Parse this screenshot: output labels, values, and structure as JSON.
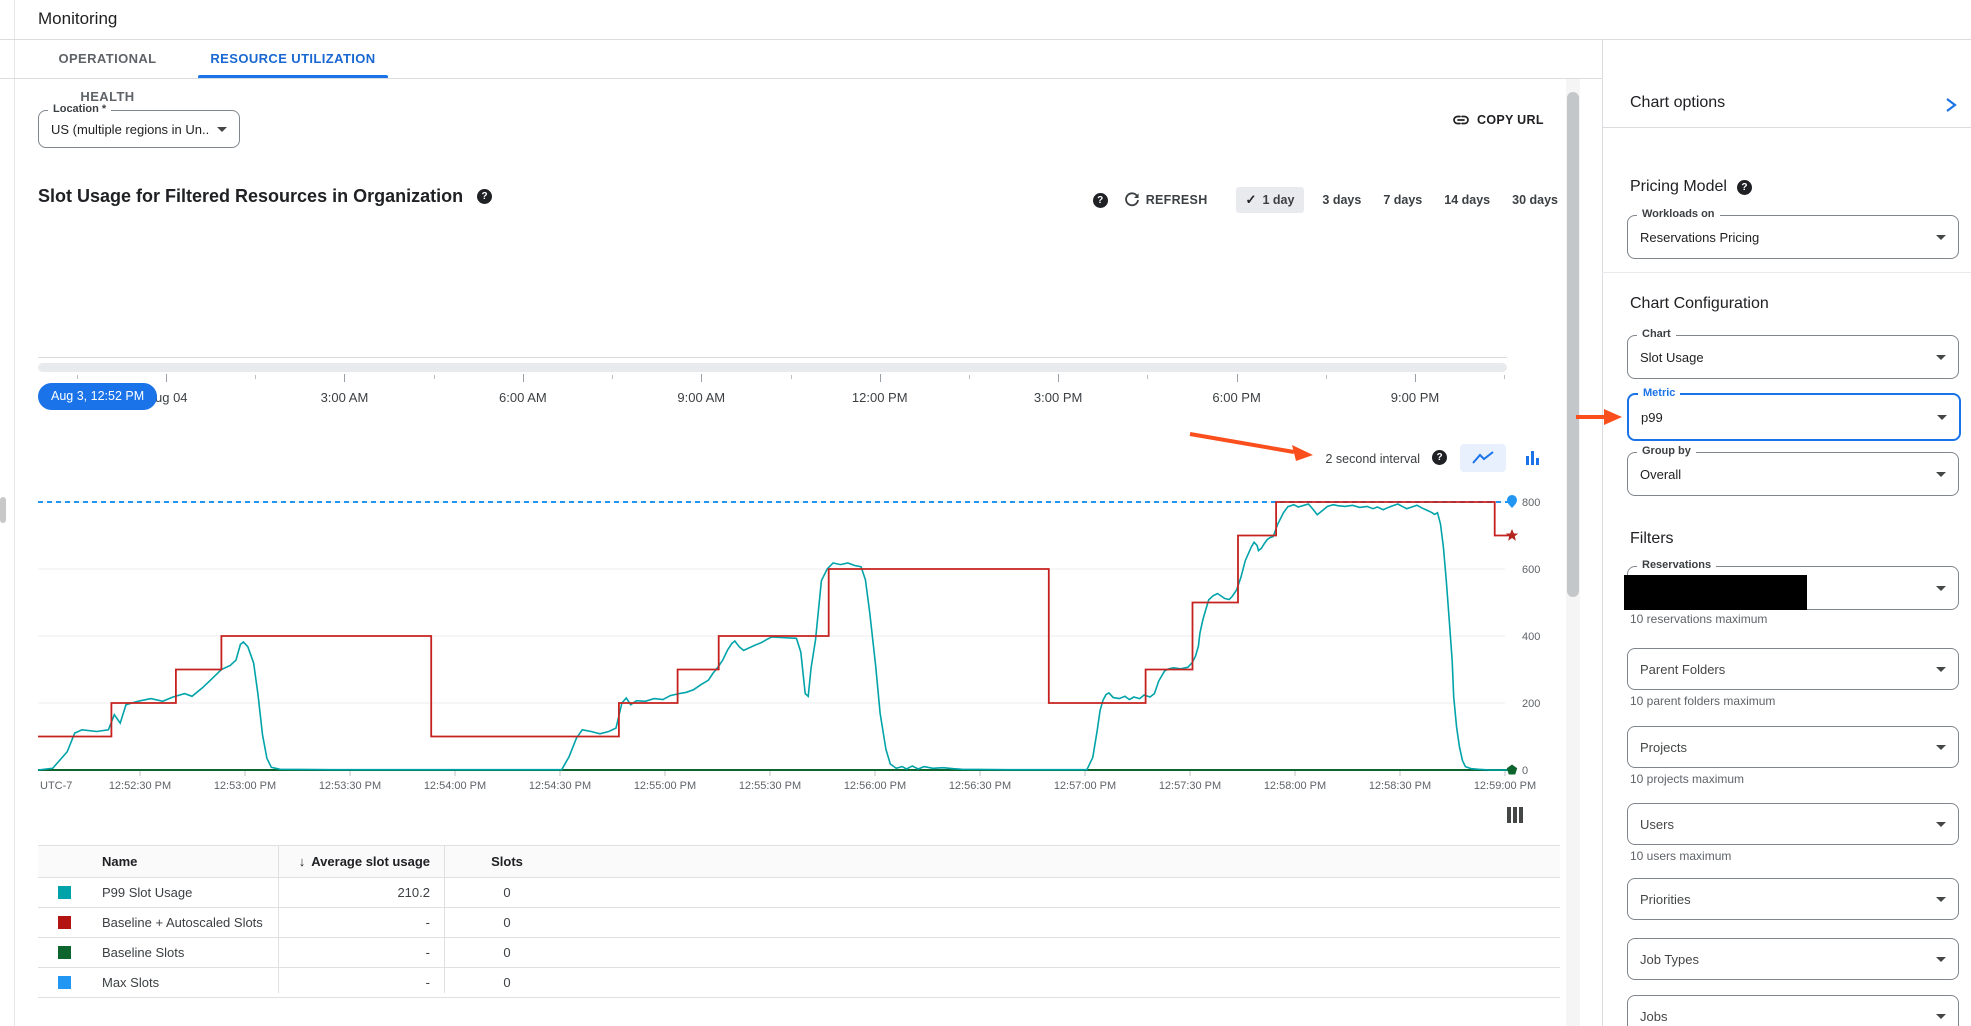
{
  "colors": {
    "accent": "#1a73e8",
    "tab_active": "#1967d2",
    "annotation_arrow": "#fb4e1d",
    "selected_range_bg": "#e8eaed",
    "toggle_active_bg": "#e8f0fe"
  },
  "header": {
    "title": "Monitoring"
  },
  "tabs": [
    {
      "label": "OPERATIONAL HEALTH",
      "active": false
    },
    {
      "label": "RESOURCE UTILIZATION",
      "active": true
    }
  ],
  "location_field": {
    "label": "Location *",
    "value": "US (multiple regions in Un..."
  },
  "copy_url": {
    "label": "COPY URL"
  },
  "chart_header": {
    "title": "Slot Usage for Filtered Resources in Organization",
    "refresh_label": "REFRESH",
    "ranges": [
      "1 day",
      "3 days",
      "7 days",
      "14 days",
      "30 days"
    ],
    "selected_range": "1 day"
  },
  "timeline": {
    "selected_time": "Aug 3, 12:52 PM",
    "clipped_first_label": "ug 04",
    "labels": [
      "Aug 04",
      "3:00 AM",
      "6:00 AM",
      "9:00 AM",
      "12:00 PM",
      "3:00 PM",
      "6:00 PM",
      "9:00 PM"
    ]
  },
  "interval_control": {
    "label": "2 second interval"
  },
  "chart_data": {
    "type": "line",
    "title": "Slot Usage for Filtered Resources in Organization",
    "x_axis_note": "UTC-7",
    "x_tick_labels": [
      "12:52:30 PM",
      "12:53:00 PM",
      "12:53:30 PM",
      "12:54:00 PM",
      "12:54:30 PM",
      "12:55:00 PM",
      "12:55:30 PM",
      "12:56:00 PM",
      "12:56:30 PM",
      "12:57:00 PM",
      "12:57:30 PM",
      "12:58:00 PM",
      "12:58:30 PM",
      "12:59:00 PM"
    ],
    "y_ticks": [
      0,
      200,
      400,
      600,
      800
    ],
    "ylim": [
      0,
      830
    ],
    "grid": true,
    "legend_position": "table-below",
    "series": [
      {
        "name": "Max Slots",
        "color": "#2196f3",
        "style": "dashed",
        "width": 2,
        "marker": "drop",
        "points": [
          [
            0,
            800
          ],
          [
            1,
            800
          ]
        ]
      },
      {
        "name": "Baseline Slots",
        "color": "#0d652d",
        "style": "solid",
        "width": 2,
        "marker": "pentagon",
        "points": [
          [
            0,
            0
          ],
          [
            1,
            0
          ]
        ]
      },
      {
        "name": "P99 Slot Usage",
        "color": "#00a3a9",
        "style": "solid",
        "width": 1.6,
        "marker": "none",
        "points": [
          [
            0,
            0
          ],
          [
            0.01,
            5
          ],
          [
            0.02,
            55
          ],
          [
            0.025,
            110
          ],
          [
            0.03,
            120
          ],
          [
            0.04,
            115
          ],
          [
            0.048,
            120
          ],
          [
            0.052,
            165
          ],
          [
            0.056,
            140
          ],
          [
            0.06,
            195
          ],
          [
            0.068,
            205
          ],
          [
            0.077,
            213
          ],
          [
            0.085,
            205
          ],
          [
            0.092,
            218
          ],
          [
            0.1,
            228
          ],
          [
            0.105,
            220
          ],
          [
            0.112,
            245
          ],
          [
            0.118,
            270
          ],
          [
            0.125,
            300
          ],
          [
            0.131,
            312
          ],
          [
            0.135,
            328
          ],
          [
            0.138,
            375
          ],
          [
            0.14,
            382
          ],
          [
            0.143,
            368
          ],
          [
            0.147,
            320
          ],
          [
            0.15,
            225
          ],
          [
            0.153,
            105
          ],
          [
            0.156,
            35
          ],
          [
            0.159,
            8
          ],
          [
            0.165,
            2
          ],
          [
            0.2,
            1
          ],
          [
            0.28,
            1
          ],
          [
            0.357,
            1
          ],
          [
            0.362,
            40
          ],
          [
            0.367,
            95
          ],
          [
            0.371,
            120
          ],
          [
            0.377,
            115
          ],
          [
            0.383,
            108
          ],
          [
            0.389,
            115
          ],
          [
            0.394,
            125
          ],
          [
            0.398,
            200
          ],
          [
            0.401,
            215
          ],
          [
            0.404,
            195
          ],
          [
            0.408,
            207
          ],
          [
            0.414,
            205
          ],
          [
            0.42,
            213
          ],
          [
            0.426,
            210
          ],
          [
            0.431,
            222
          ],
          [
            0.437,
            228
          ],
          [
            0.442,
            232
          ],
          [
            0.447,
            240
          ],
          [
            0.452,
            255
          ],
          [
            0.457,
            268
          ],
          [
            0.46,
            288
          ],
          [
            0.464,
            310
          ],
          [
            0.467,
            330
          ],
          [
            0.47,
            358
          ],
          [
            0.473,
            378
          ],
          [
            0.475,
            385
          ],
          [
            0.478,
            368
          ],
          [
            0.481,
            357
          ],
          [
            0.485,
            365
          ],
          [
            0.489,
            373
          ],
          [
            0.493,
            380
          ],
          [
            0.497,
            390
          ],
          [
            0.5,
            397
          ],
          [
            0.517,
            393
          ],
          [
            0.52,
            352
          ],
          [
            0.523,
            228
          ],
          [
            0.525,
            220
          ],
          [
            0.527,
            305
          ],
          [
            0.53,
            388
          ],
          [
            0.534,
            565
          ],
          [
            0.538,
            600
          ],
          [
            0.542,
            618
          ],
          [
            0.547,
            613
          ],
          [
            0.552,
            618
          ],
          [
            0.557,
            610
          ],
          [
            0.561,
            607
          ],
          [
            0.564,
            568
          ],
          [
            0.567,
            468
          ],
          [
            0.571,
            310
          ],
          [
            0.574,
            170
          ],
          [
            0.578,
            62
          ],
          [
            0.581,
            18
          ],
          [
            0.585,
            5
          ],
          [
            0.589,
            10
          ],
          [
            0.592,
            3
          ],
          [
            0.596,
            12
          ],
          [
            0.6,
            3
          ],
          [
            0.604,
            10
          ],
          [
            0.61,
            5
          ],
          [
            0.617,
            7
          ],
          [
            0.624,
            4
          ],
          [
            0.63,
            2
          ],
          [
            0.66,
            1
          ],
          [
            0.7,
            1
          ],
          [
            0.715,
            1
          ],
          [
            0.719,
            38
          ],
          [
            0.722,
            118
          ],
          [
            0.724,
            178
          ],
          [
            0.726,
            208
          ],
          [
            0.728,
            225
          ],
          [
            0.73,
            230
          ],
          [
            0.733,
            216
          ],
          [
            0.737,
            213
          ],
          [
            0.741,
            220
          ],
          [
            0.744,
            210
          ],
          [
            0.747,
            218
          ],
          [
            0.751,
            213
          ],
          [
            0.754,
            224
          ],
          [
            0.758,
            218
          ],
          [
            0.761,
            228
          ],
          [
            0.764,
            266
          ],
          [
            0.768,
            296
          ],
          [
            0.771,
            302
          ],
          [
            0.774,
            305
          ],
          [
            0.779,
            302
          ],
          [
            0.784,
            307
          ],
          [
            0.787,
            322
          ],
          [
            0.789,
            340
          ],
          [
            0.791,
            370
          ],
          [
            0.792,
            408
          ],
          [
            0.794,
            448
          ],
          [
            0.796,
            478
          ],
          [
            0.798,
            508
          ],
          [
            0.801,
            520
          ],
          [
            0.804,
            527
          ],
          [
            0.806,
            521
          ],
          [
            0.809,
            512
          ],
          [
            0.812,
            509
          ],
          [
            0.814,
            518
          ],
          [
            0.817,
            537
          ],
          [
            0.82,
            575
          ],
          [
            0.823,
            625
          ],
          [
            0.827,
            665
          ],
          [
            0.829,
            680
          ],
          [
            0.831,
            670
          ],
          [
            0.832,
            655
          ],
          [
            0.834,
            662
          ],
          [
            0.836,
            676
          ],
          [
            0.838,
            688
          ],
          [
            0.84,
            694
          ],
          [
            0.842,
            697
          ],
          [
            0.845,
            733
          ],
          [
            0.849,
            768
          ],
          [
            0.852,
            786
          ],
          [
            0.856,
            792
          ],
          [
            0.859,
            785
          ],
          [
            0.863,
            790
          ],
          [
            0.866,
            794
          ],
          [
            0.869,
            779
          ],
          [
            0.872,
            762
          ],
          [
            0.876,
            776
          ],
          [
            0.879,
            787
          ],
          [
            0.883,
            792
          ],
          [
            0.886,
            789
          ],
          [
            0.891,
            787
          ],
          [
            0.896,
            790
          ],
          [
            0.901,
            784
          ],
          [
            0.906,
            787
          ],
          [
            0.91,
            780
          ],
          [
            0.913,
            785
          ],
          [
            0.917,
            777
          ],
          [
            0.92,
            783
          ],
          [
            0.923,
            788
          ],
          [
            0.927,
            794
          ],
          [
            0.93,
            787
          ],
          [
            0.933,
            780
          ],
          [
            0.937,
            786
          ],
          [
            0.94,
            790
          ],
          [
            0.943,
            783
          ],
          [
            0.947,
            775
          ],
          [
            0.95,
            769
          ],
          [
            0.952,
            763
          ],
          [
            0.954,
            768
          ],
          [
            0.956,
            734
          ],
          [
            0.958,
            665
          ],
          [
            0.96,
            565
          ],
          [
            0.962,
            445
          ],
          [
            0.964,
            325
          ],
          [
            0.965,
            218
          ],
          [
            0.967,
            128
          ],
          [
            0.969,
            68
          ],
          [
            0.971,
            28
          ],
          [
            0.973,
            10
          ],
          [
            0.977,
            4
          ],
          [
            0.982,
            2
          ],
          [
            0.99,
            0
          ],
          [
            1,
            0
          ]
        ]
      },
      {
        "name": "Baseline + Autoscaled Slots",
        "color": "#c5221f",
        "style": "step",
        "width": 1.8,
        "marker": "star",
        "marker_color": "#b3261e",
        "points": [
          [
            0,
            100
          ],
          [
            0.05,
            100
          ],
          [
            0.05,
            200
          ],
          [
            0.094,
            200
          ],
          [
            0.094,
            300
          ],
          [
            0.125,
            300
          ],
          [
            0.125,
            400
          ],
          [
            0.268,
            400
          ],
          [
            0.268,
            100
          ],
          [
            0.396,
            100
          ],
          [
            0.396,
            200
          ],
          [
            0.436,
            200
          ],
          [
            0.436,
            300
          ],
          [
            0.464,
            300
          ],
          [
            0.464,
            400
          ],
          [
            0.539,
            400
          ],
          [
            0.539,
            600
          ],
          [
            0.689,
            600
          ],
          [
            0.689,
            200
          ],
          [
            0.755,
            200
          ],
          [
            0.755,
            300
          ],
          [
            0.787,
            300
          ],
          [
            0.787,
            500
          ],
          [
            0.818,
            500
          ],
          [
            0.818,
            700
          ],
          [
            0.844,
            700
          ],
          [
            0.844,
            800
          ],
          [
            0.993,
            800
          ],
          [
            0.993,
            700
          ],
          [
            1,
            700
          ]
        ]
      }
    ]
  },
  "table": {
    "columns": [
      "Name",
      "Average slot usage",
      "Slots"
    ],
    "sorted_column": "Average slot usage",
    "sort_direction": "desc",
    "rows": [
      {
        "swatch": "#00a3a9",
        "name": "P99 Slot Usage",
        "avg": "210.2",
        "slots": "0"
      },
      {
        "swatch": "#b31412",
        "name": "Baseline + Autoscaled Slots",
        "avg": "-",
        "slots": "0"
      },
      {
        "swatch": "#0d652d",
        "name": "Baseline Slots",
        "avg": "-",
        "slots": "0"
      },
      {
        "swatch": "#2196f3",
        "name": "Max Slots",
        "avg": "-",
        "slots": "0"
      }
    ]
  },
  "panel": {
    "title": "Chart options",
    "pricing": {
      "heading": "Pricing Model",
      "field": {
        "label": "Workloads on",
        "value": "Reservations Pricing"
      }
    },
    "config": {
      "heading": "Chart Configuration",
      "chart": {
        "label": "Chart",
        "value": "Slot Usage"
      },
      "metric": {
        "label": "Metric",
        "value": "p99",
        "highlighted": true
      },
      "group_by": {
        "label": "Group by",
        "value": "Overall"
      }
    },
    "filters": {
      "heading": "Filters",
      "items": [
        {
          "label": "Reservations",
          "redacted": true,
          "hint": "10 reservations maximum"
        },
        {
          "label": "Parent Folders",
          "hint": "10 parent folders maximum"
        },
        {
          "label": "Projects",
          "hint": "10 projects maximum"
        },
        {
          "label": "Users",
          "hint": "10 users maximum"
        },
        {
          "label": "Priorities"
        },
        {
          "label": "Job Types"
        },
        {
          "label": "Jobs"
        }
      ]
    }
  }
}
